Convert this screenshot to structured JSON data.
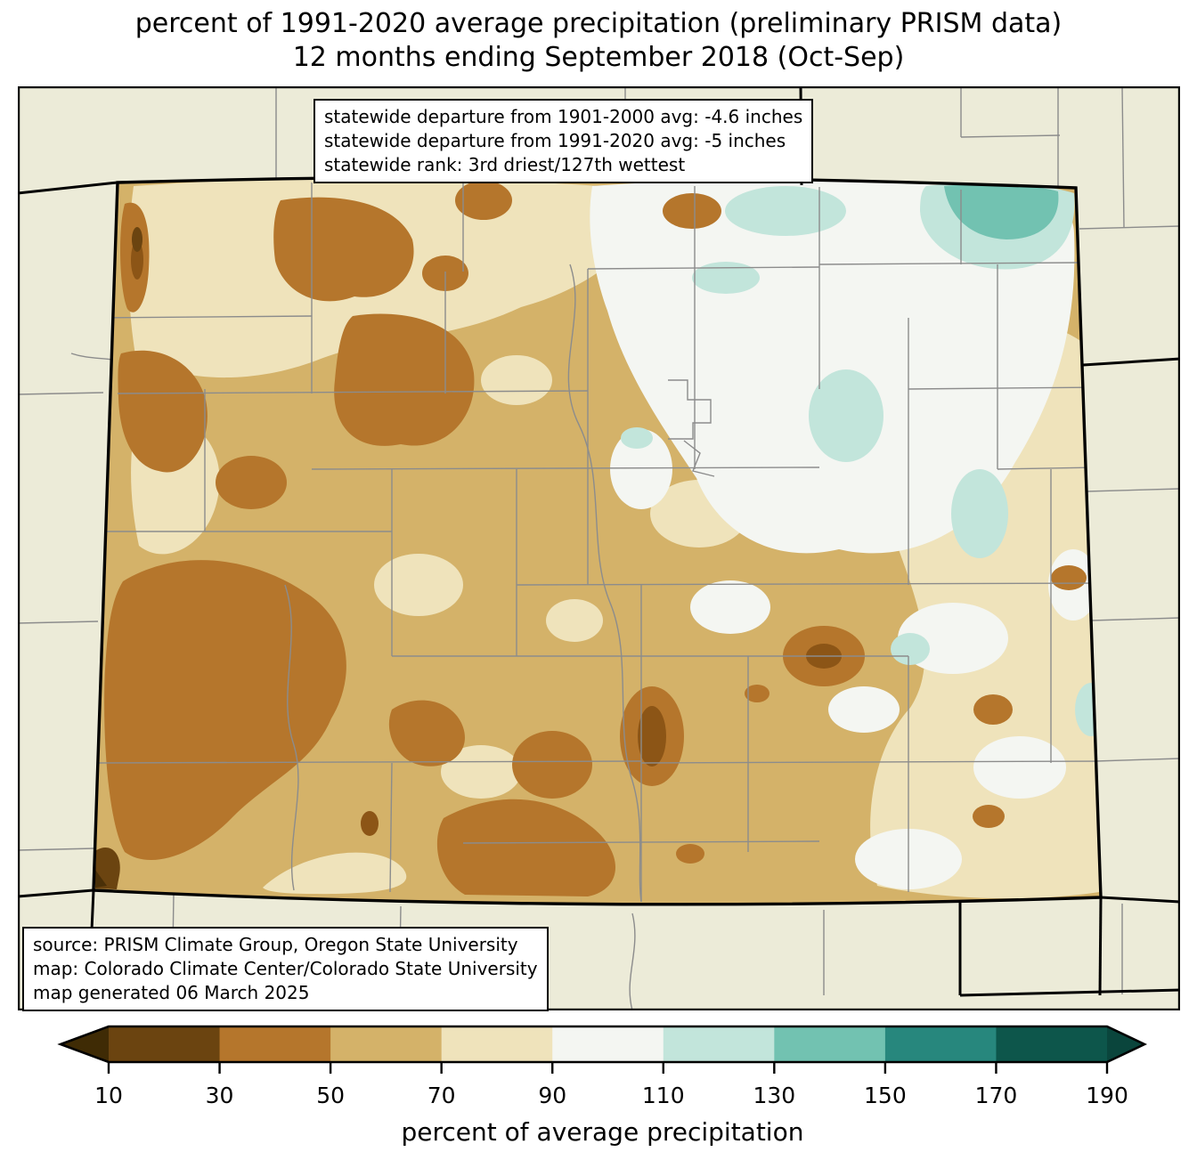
{
  "title": {
    "line1": "percent of 1991-2020 average precipitation (preliminary PRISM data)",
    "line2": "12 months ending September 2018 (Oct-Sep)"
  },
  "stats_box": {
    "line1": "statewide departure from 1901-2000 avg: -4.6 inches",
    "line2": "statewide departure from 1991-2020 avg: -5 inches",
    "line3": "statewide rank: 3rd driest/127th wettest"
  },
  "source_box": {
    "line1": "source: PRISM Climate Group, Oregon State University",
    "line2": "map: Colorado Climate Center/Colorado State University",
    "line3": "map generated 06 March 2025"
  },
  "colorbar": {
    "label": "percent of average precipitation",
    "tick_labels": [
      "10",
      "30",
      "50",
      "70",
      "90",
      "110",
      "130",
      "150",
      "170",
      "190"
    ],
    "segment_colors": [
      "#6B4410",
      "#B5762C",
      "#D4B269",
      "#EFE3BB",
      "#F4F6F2",
      "#C2E5DB",
      "#72C2B1",
      "#27877D",
      "#0D564B"
    ],
    "extend_left_color": "#3F2B05",
    "extend_right_color": "#0A453C"
  },
  "map": {
    "region": "Colorado",
    "colors": {
      "land_outside": "#ECEBD8",
      "county_line": "#8C8C8C",
      "state_border": "#000000",
      "pct_50_70_tan": "#D4B269",
      "pct_70_90_cream": "#EFE3BB",
      "pct_90_110_white": "#F4F6F2",
      "pct_110_130_pale_teal": "#C2E5DB",
      "pct_130_150_teal": "#72C2B1",
      "pct_30_50_brown": "#B5762C",
      "pct_20_35_mid_brown": "#8C5516",
      "pct_10_30_dark_brown": "#6B4410",
      "pct_under_10_darkest": "#4A3008"
    }
  }
}
